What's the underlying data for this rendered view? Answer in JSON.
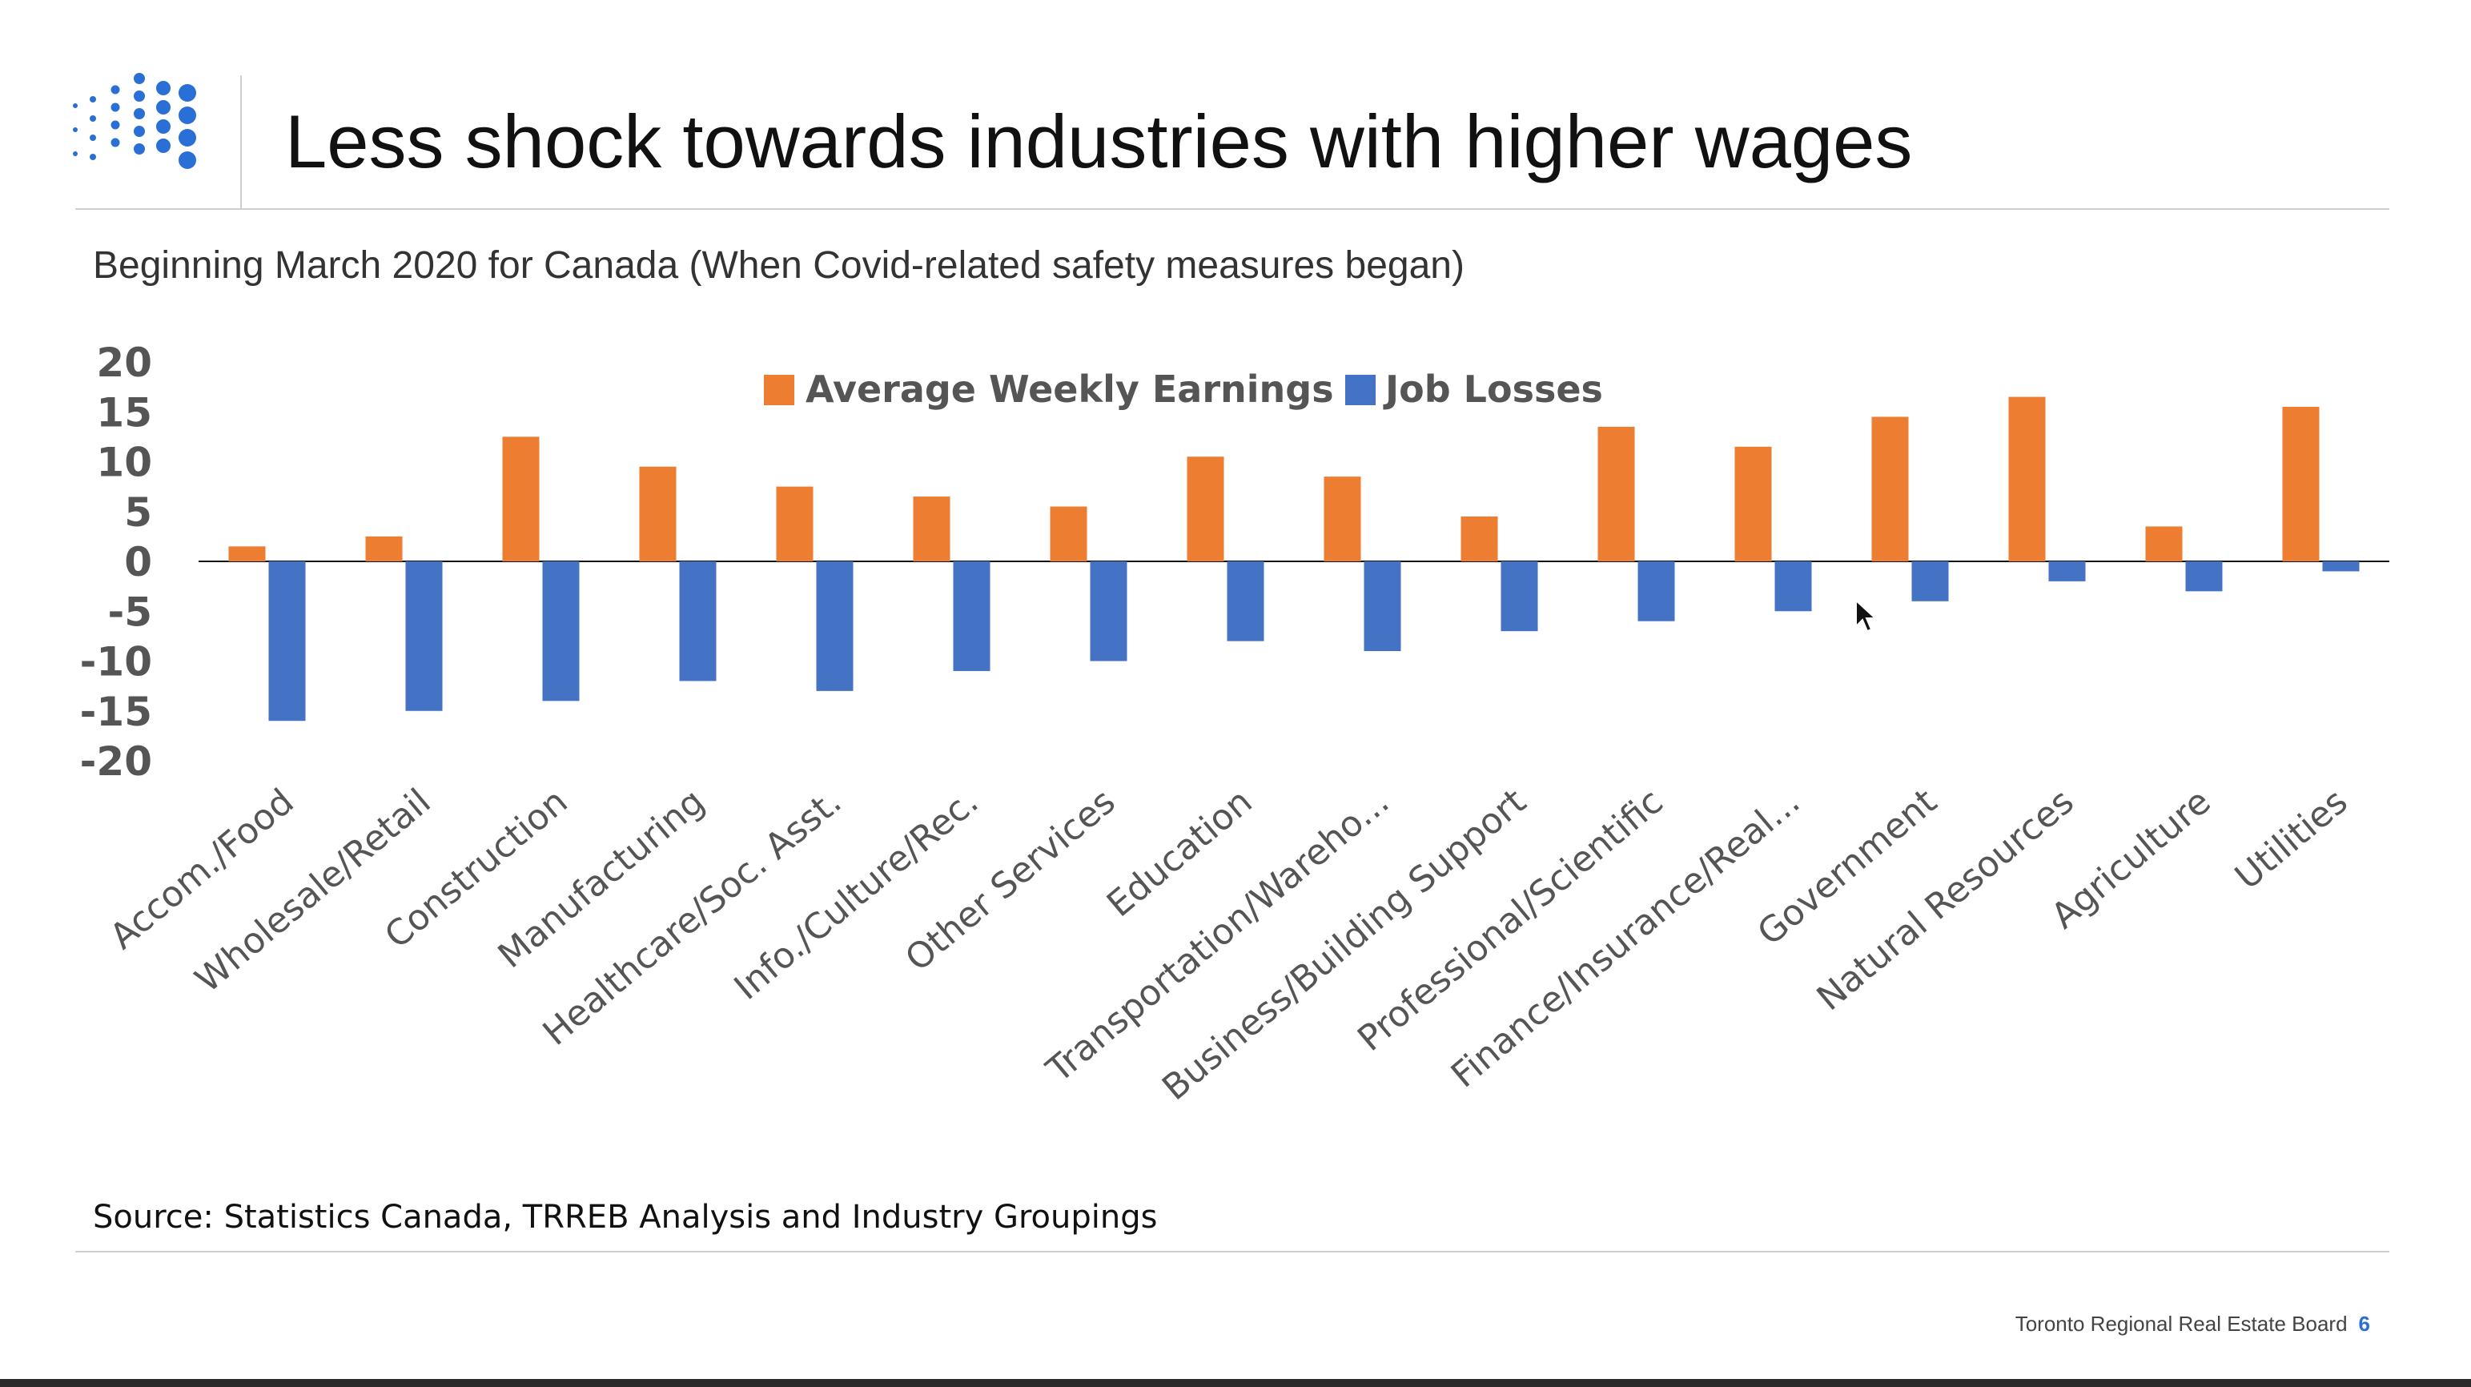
{
  "slide": {
    "title": "Less shock towards industries with higher wages",
    "subtitle": "Beginning March 2020 for Canada (When Covid-related safety measures began)",
    "source": "Source: Statistics Canada, TRREB Analysis and Industry Groupings",
    "footer_org": "Toronto Regional Real Estate Board",
    "page_number": "6",
    "logo_icon": "dot-matrix-logo-icon",
    "brand_color": "#2a6fd6"
  },
  "chart_data": {
    "type": "bar",
    "title": "",
    "xlabel": "",
    "ylabel": "",
    "ylim": [
      -20,
      20
    ],
    "yticks": [
      "20",
      "15",
      "10",
      "5",
      "0",
      "-5",
      "-10",
      "-15",
      "-20"
    ],
    "grid": false,
    "legend_position": "top-center",
    "categories": [
      "Accom./Food",
      "Wholesale/Retail",
      "Construction",
      "Manufacturing",
      "Healthcare/Soc. Asst.",
      "Info./Culture/Rec.",
      "Other Services",
      "Education",
      "Transportation/Wareho...",
      "Business/Building Support",
      "Professional/Scientific",
      "Finance/Insurance/Real...",
      "Government",
      "Natural Resources",
      "Agriculture",
      "Utilities"
    ],
    "series": [
      {
        "name": "Average Weekly Earnings",
        "color": "#ed7d31",
        "values": [
          1.5,
          2.5,
          12.5,
          9.5,
          7.5,
          6.5,
          5.5,
          10.5,
          8.5,
          4.5,
          13.5,
          11.5,
          14.5,
          16.5,
          3.5,
          15.5
        ]
      },
      {
        "name": "Job Losses",
        "color": "#4472c4",
        "values": [
          -16,
          -15,
          -14,
          -12,
          -13,
          -11,
          -10,
          -8,
          -9,
          -7,
          -6,
          -5,
          -4,
          -2,
          -3,
          -1
        ]
      }
    ]
  }
}
